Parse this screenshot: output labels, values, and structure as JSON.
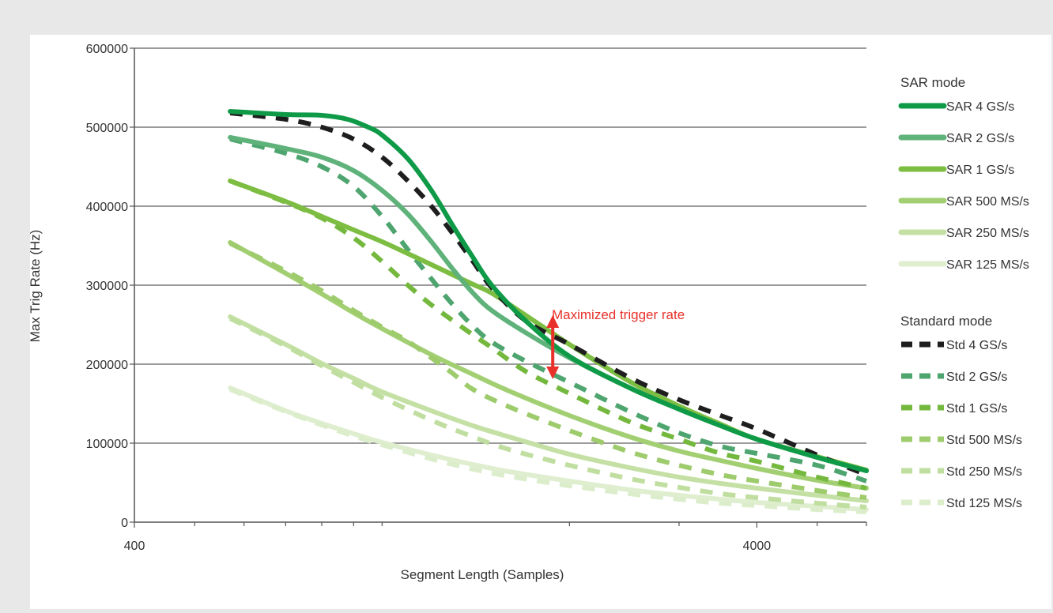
{
  "chart_data": {
    "type": "line",
    "title": "",
    "xlabel": "Segment Length (Samples)",
    "ylabel": "Max Trig Rate  (Hz)",
    "x_scale": "log",
    "xlim": [
      400,
      6000
    ],
    "ylim": [
      0,
      600000
    ],
    "x_ticks": [
      400,
      4000
    ],
    "y_ticks": [
      0,
      100000,
      200000,
      300000,
      400000,
      500000,
      600000
    ],
    "grid": "horizontal",
    "legend_position": "right",
    "legend_groups": [
      {
        "title": "SAR mode",
        "series": [
          0,
          1,
          2,
          3,
          4,
          5
        ]
      },
      {
        "title": "Standard mode",
        "series": [
          6,
          7,
          8,
          9,
          10,
          11
        ]
      }
    ],
    "annotation": {
      "text": "Maximized trigger rate",
      "color": "#e8312a",
      "x": 1880,
      "y_top": 260000,
      "y_bottom": 183000
    },
    "series": [
      {
        "name": "SAR 4 GS/s",
        "style": "solid",
        "color": "#0f9a48",
        "x": [
          570,
          700,
          800,
          880,
          950,
          1000,
          1100,
          1200,
          1300,
          1400,
          1500,
          1700,
          2000,
          2500,
          3000,
          3500,
          4000,
          5000,
          6000
        ],
        "y": [
          520000,
          516000,
          515000,
          510000,
          500000,
          490000,
          460000,
          420000,
          375000,
          335000,
          300000,
          255000,
          210000,
          170000,
          143000,
          122000,
          105000,
          82000,
          65000
        ]
      },
      {
        "name": "SAR 2 GS/s",
        "style": "solid",
        "color": "#5fb27a",
        "x": [
          570,
          700,
          800,
          900,
          1000,
          1100,
          1200,
          1300,
          1400,
          1500,
          1700,
          2000,
          2500,
          3000,
          3500,
          4000,
          5000,
          6000
        ],
        "y": [
          487000,
          473000,
          462000,
          445000,
          420000,
          390000,
          355000,
          320000,
          290000,
          268000,
          240000,
          208000,
          170000,
          143000,
          122000,
          105000,
          82000,
          65000
        ]
      },
      {
        "name": "SAR 1 GS/s",
        "style": "solid",
        "color": "#7cbd42",
        "x": [
          570,
          700,
          800,
          900,
          1000,
          1100,
          1200,
          1300,
          1400,
          1500,
          1700,
          2000,
          2500,
          3000,
          3500,
          4000,
          5000,
          6000
        ],
        "y": [
          432000,
          406000,
          387000,
          370000,
          355000,
          340000,
          326000,
          313000,
          301000,
          290000,
          262000,
          225000,
          178000,
          147000,
          124000,
          105000,
          83000,
          66000
        ]
      },
      {
        "name": "SAR 500 MS/s",
        "style": "solid",
        "color": "#a3cf73",
        "x": [
          570,
          700,
          800,
          900,
          1000,
          1200,
          1400,
          1600,
          2000,
          2500,
          3000,
          3500,
          4000,
          5000,
          6000
        ],
        "y": [
          354000,
          315000,
          289000,
          265000,
          245000,
          212000,
          187000,
          166000,
          135000,
          108000,
          90000,
          78000,
          68000,
          53000,
          43000
        ]
      },
      {
        "name": "SAR 250 MS/s",
        "style": "solid",
        "color": "#c4e0a4",
        "x": [
          570,
          700,
          800,
          900,
          1000,
          1200,
          1400,
          1600,
          2000,
          2500,
          3000,
          3500,
          4000,
          5000,
          6000
        ],
        "y": [
          260000,
          225000,
          201000,
          182000,
          165000,
          141000,
          122000,
          108000,
          86000,
          69000,
          57000,
          49000,
          43000,
          34000,
          27000
        ]
      },
      {
        "name": "SAR 125 MS/s",
        "style": "solid",
        "color": "#dfeecf",
        "x": [
          570,
          700,
          800,
          900,
          1000,
          1200,
          1400,
          1600,
          2000,
          2500,
          3000,
          3500,
          4000,
          5000,
          6000
        ],
        "y": [
          170000,
          141000,
          125000,
          112000,
          101000,
          85000,
          73000,
          64000,
          52000,
          41000,
          34000,
          29000,
          25000,
          20000,
          16000
        ]
      },
      {
        "name": "Std 4 GS/s",
        "style": "dashed",
        "color": "#1e1e1e",
        "x": [
          570,
          700,
          800,
          900,
          1000,
          1100,
          1200,
          1300,
          1400,
          1500,
          1700,
          2000,
          2500,
          3000,
          3500,
          4000,
          5000,
          6000
        ],
        "y": [
          518000,
          510000,
          500000,
          485000,
          462000,
          432000,
          400000,
          365000,
          330000,
          297000,
          255000,
          225000,
          183000,
          155000,
          135000,
          118000,
          85000,
          60000
        ]
      },
      {
        "name": "Std 2 GS/s",
        "style": "dashed",
        "color": "#4ea56f",
        "x": [
          570,
          700,
          800,
          900,
          1000,
          1100,
          1200,
          1300,
          1400,
          1500,
          1700,
          2000,
          2500,
          3000,
          3500,
          4000,
          5000,
          6000
        ],
        "y": [
          485000,
          467000,
          450000,
          425000,
          387000,
          345000,
          308000,
          275000,
          248000,
          228000,
          204000,
          177000,
          140000,
          113000,
          96000,
          87000,
          72000,
          52000
        ]
      },
      {
        "name": "Std 1 GS/s",
        "style": "dashed",
        "color": "#74b83e",
        "x": [
          570,
          700,
          800,
          900,
          1000,
          1100,
          1200,
          1300,
          1400,
          1500,
          1700,
          2000,
          2500,
          3000,
          3500,
          4000,
          5000,
          6000
        ],
        "y": [
          432000,
          405000,
          385000,
          360000,
          330000,
          300000,
          275000,
          255000,
          237000,
          221000,
          191000,
          163000,
          127000,
          105000,
          87000,
          77000,
          57000,
          43000
        ]
      },
      {
        "name": "Std 500 MS/s",
        "style": "dashed",
        "color": "#9ecb6c",
        "x": [
          570,
          700,
          800,
          900,
          1000,
          1100,
          1200,
          1300,
          1400,
          1600,
          2000,
          2500,
          3000,
          3500,
          4000,
          5000,
          6000
        ],
        "y": [
          353000,
          318000,
          293000,
          268000,
          247000,
          229000,
          208000,
          188000,
          168000,
          146000,
          116000,
          89000,
          72000,
          60000,
          52000,
          40000,
          31000
        ]
      },
      {
        "name": "Std 250 MS/s",
        "style": "dashed",
        "color": "#c0dea0",
        "x": [
          570,
          700,
          800,
          900,
          1000,
          1200,
          1400,
          1600,
          2000,
          2500,
          3000,
          3500,
          4000,
          5000,
          6000
        ],
        "y": [
          258000,
          223000,
          198000,
          177000,
          158000,
          129000,
          108000,
          92000,
          72000,
          55000,
          44000,
          36000,
          31000,
          24000,
          19000
        ]
      },
      {
        "name": "Std 125 MS/s",
        "style": "dashed",
        "color": "#dcedcb",
        "x": [
          570,
          700,
          800,
          900,
          1000,
          1200,
          1400,
          1600,
          2000,
          2500,
          3000,
          3500,
          4000,
          5000,
          6000
        ],
        "y": [
          168000,
          140000,
          123000,
          109000,
          98000,
          80000,
          67000,
          58000,
          46000,
          36000,
          29000,
          24000,
          21000,
          16000,
          13000
        ]
      }
    ]
  }
}
